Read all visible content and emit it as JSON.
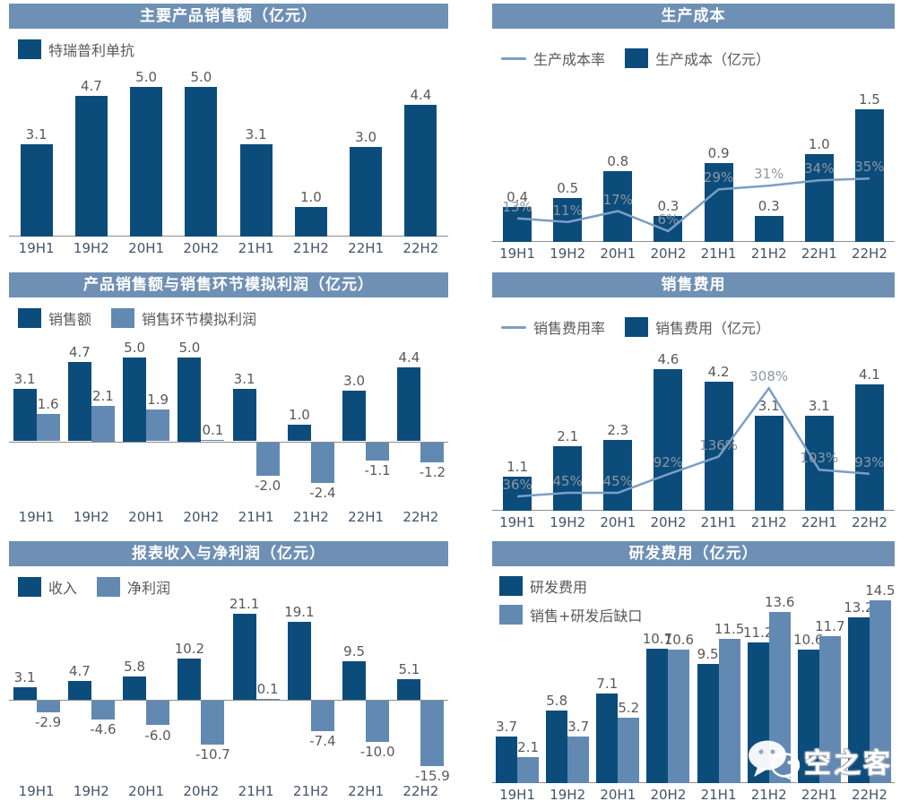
{
  "colors": {
    "header_bg": "#6F90B5",
    "bar_dark": "#0B4C7B",
    "bar_light": "#6289B2",
    "line": "#7C9EC6",
    "value_label": "#595959",
    "rate_label": "#8F97A0",
    "axis_label": "#44546A",
    "axis_line": "#8C8C8C",
    "title_text": "#FFFFFF"
  },
  "categories": [
    "19H1",
    "19H2",
    "20H1",
    "20H2",
    "21H1",
    "21H2",
    "22H1",
    "22H2"
  ],
  "watermark": {
    "text": "空之客",
    "icon": "wechat-logo"
  },
  "chart_data": [
    {
      "id": "main-product-sales",
      "title": "主要产品销售额（亿元）",
      "type": "bar",
      "legend_position": "top-left",
      "grid": false,
      "categories": [
        "19H1",
        "19H2",
        "20H1",
        "20H2",
        "21H1",
        "21H2",
        "22H1",
        "22H2"
      ],
      "ylim": [
        0,
        5.7
      ],
      "series": [
        {
          "name": "特瑞普利单抗",
          "role": "dark",
          "values": [
            3.1,
            4.7,
            5.0,
            5.0,
            3.1,
            1.0,
            3.0,
            4.4
          ]
        }
      ]
    },
    {
      "id": "production-cost",
      "title": "生产成本",
      "type": "combo",
      "legend_position": "top-left",
      "grid": false,
      "categories": [
        "19H1",
        "19H2",
        "20H1",
        "20H2",
        "21H1",
        "21H2",
        "22H1",
        "22H2"
      ],
      "ylim": [
        0,
        1.85
      ],
      "secondary_ylim": [
        0,
        90
      ],
      "series": [
        {
          "name": "生产成本（亿元）",
          "role": "dark",
          "values": [
            0.4,
            0.5,
            0.8,
            0.3,
            0.9,
            0.3,
            1.0,
            1.5
          ]
        }
      ],
      "line": {
        "name": "生产成本率",
        "unit": "%",
        "values": [
          13,
          11,
          17,
          6,
          29,
          31,
          34,
          35
        ]
      }
    },
    {
      "id": "product-sales-vs-channel-profit",
      "title": "产品销售额与销售环节模拟利润（亿元）",
      "type": "bar",
      "legend_position": "top-left",
      "grid": false,
      "categories": [
        "19H1",
        "19H2",
        "20H1",
        "20H2",
        "21H1",
        "21H2",
        "22H1",
        "22H2"
      ],
      "ylim": [
        -3.8,
        6.3
      ],
      "series": [
        {
          "name": "销售额",
          "role": "dark",
          "values": [
            3.1,
            4.7,
            5.0,
            5.0,
            3.1,
            1.0,
            3.0,
            4.4
          ]
        },
        {
          "name": "销售环节模拟利润",
          "role": "light",
          "values": [
            1.6,
            2.1,
            1.9,
            0.1,
            -2.0,
            -2.4,
            -1.1,
            -1.2
          ]
        }
      ]
    },
    {
      "id": "selling-expense",
      "title": "销售费用",
      "type": "combo",
      "legend_position": "top-left",
      "grid": false,
      "categories": [
        "19H1",
        "19H2",
        "20H1",
        "20H2",
        "21H1",
        "21H2",
        "22H1",
        "22H2"
      ],
      "ylim": [
        0,
        5.3
      ],
      "secondary_ylim": [
        0,
        410
      ],
      "series": [
        {
          "name": "销售费用（亿元）",
          "role": "dark",
          "values": [
            1.1,
            2.1,
            2.3,
            4.6,
            4.2,
            3.1,
            3.1,
            4.1
          ]
        }
      ],
      "line": {
        "name": "销售费用率",
        "unit": "%",
        "values": [
          36,
          45,
          45,
          92,
          136,
          308,
          103,
          93
        ]
      }
    },
    {
      "id": "reported-revenue-net-profit",
      "title": "报表收入与净利润（亿元）",
      "type": "bar",
      "legend_position": "top-left",
      "grid": false,
      "categories": [
        "19H1",
        "19H2",
        "20H1",
        "20H2",
        "21H1",
        "21H2",
        "22H1",
        "22H2"
      ],
      "ylim": [
        -19.5,
        23.5
      ],
      "series": [
        {
          "name": "收入",
          "role": "dark",
          "values": [
            3.1,
            4.7,
            5.8,
            10.2,
            21.1,
            19.1,
            9.5,
            5.1
          ]
        },
        {
          "name": "净利润",
          "role": "light",
          "values": [
            -2.9,
            -4.6,
            -6.0,
            -10.7,
            0.1,
            -7.4,
            -10.0,
            -15.9
          ]
        }
      ]
    },
    {
      "id": "rd-expense",
      "title": "研发费用（亿元）",
      "type": "bar",
      "legend_position": "top-left-stacked",
      "grid": false,
      "categories": [
        "19H1",
        "19H2",
        "20H1",
        "20H2",
        "21H1",
        "21H2",
        "22H1",
        "22H2"
      ],
      "ylim": [
        0,
        16.8
      ],
      "series": [
        {
          "name": "研发费用",
          "role": "dark",
          "values": [
            3.7,
            5.8,
            7.1,
            10.7,
            9.5,
            11.2,
            10.6,
            13.2
          ]
        },
        {
          "name": "销售+研发后缺口",
          "role": "light",
          "values": [
            2.1,
            3.7,
            5.2,
            10.6,
            11.5,
            13.6,
            11.7,
            14.5
          ]
        }
      ]
    }
  ]
}
